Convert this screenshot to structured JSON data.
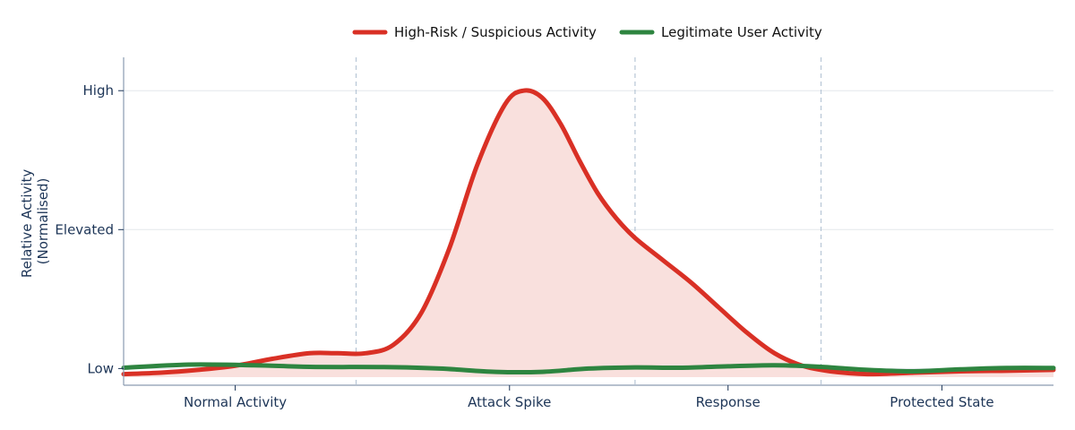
{
  "chart_data": {
    "type": "line",
    "title": "",
    "xlabel": "",
    "ylabel": [
      "Relative Activity",
      "(Normalised)"
    ],
    "categories": [
      "Normal Activity",
      "Attack Spike",
      "Response",
      "Protected State"
    ],
    "xlim": [
      0,
      10
    ],
    "ylim": [
      -0.06,
      1.12
    ],
    "x_tick_positions": [
      1.2,
      4.15,
      6.5,
      8.8
    ],
    "phase_dividers": [
      2.5,
      5.5,
      7.5
    ],
    "y_ticks": [
      {
        "value": 0,
        "label": "Low"
      },
      {
        "value": 0.5,
        "label": "Elevated"
      },
      {
        "value": 1,
        "label": "High"
      }
    ],
    "grid": true,
    "legend_position": "top-center",
    "series": [
      {
        "name": "High-Risk / Suspicious Activity",
        "color": "#d93025",
        "fill": "#f9e0dd",
        "x": [
          0,
          0.4,
          0.8,
          1.2,
          1.6,
          2.0,
          2.3,
          2.6,
          2.9,
          3.2,
          3.5,
          3.8,
          4.1,
          4.3,
          4.5,
          4.7,
          4.9,
          5.1,
          5.3,
          5.5,
          5.8,
          6.1,
          6.4,
          6.7,
          7.0,
          7.3,
          7.6,
          8.0,
          8.5,
          9.0,
          9.5,
          10
        ],
        "values": [
          -0.02,
          -0.015,
          -0.005,
          0.01,
          0.035,
          0.055,
          0.055,
          0.055,
          0.085,
          0.2,
          0.43,
          0.73,
          0.95,
          1.0,
          0.975,
          0.88,
          0.75,
          0.63,
          0.54,
          0.47,
          0.39,
          0.31,
          0.22,
          0.13,
          0.055,
          0.01,
          -0.01,
          -0.02,
          -0.015,
          -0.01,
          -0.008,
          -0.005
        ]
      },
      {
        "name": "Legitimate User Activity",
        "color": "#2e8540",
        "x": [
          0,
          0.7,
          1.4,
          2.0,
          2.8,
          3.4,
          4.0,
          4.5,
          5.0,
          5.5,
          6.0,
          6.5,
          7.0,
          7.5,
          8.0,
          8.5,
          9.0,
          9.5,
          10
        ],
        "values": [
          0.003,
          0.014,
          0.012,
          0.006,
          0.005,
          0.0,
          -0.012,
          -0.012,
          0.0,
          0.004,
          0.003,
          0.008,
          0.012,
          0.006,
          -0.005,
          -0.01,
          -0.003,
          0.002,
          0.002
        ]
      }
    ]
  }
}
